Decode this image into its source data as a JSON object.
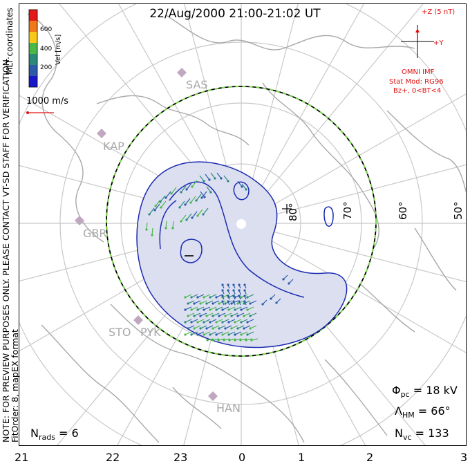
{
  "title": "22/Aug/2000 21:00-21:02 UT",
  "side_note": {
    "line1": "NOTE: FOR PREVIEW PURPOSES ONLY. PLEASE CONTACT VT-SD STAFF FOR VERIFICATION.",
    "line2": "FitOrder: 8, mapEX format"
  },
  "mlt_coordinates_label": "MLT coordinates",
  "colorbar": {
    "title": "Vel [m/s]",
    "ticks": [
      "600",
      "400",
      "200"
    ],
    "colors": [
      "#e21a1a",
      "#f07818",
      "#f8c818",
      "#4ab848",
      "#2a8a7a",
      "#2a5aa8",
      "#1818c8"
    ]
  },
  "vector_scale_label": "1000 m/s",
  "imf": {
    "bz_label": "+Z (5 nT)",
    "by_label": "+Y",
    "caption": "OMNI IMF",
    "model_line1": "Stat Mod: RG96",
    "model_line2": "Bz+, 0<BT<4"
  },
  "latitude_labels": [
    "80°",
    "70°",
    "60°",
    "50°"
  ],
  "stations": [
    "SAS",
    "KAP",
    "GBR",
    "STO",
    "PYK",
    "HAN"
  ],
  "mlt_labels": [
    "21",
    "22",
    "23",
    "0",
    "1",
    "2",
    "3"
  ],
  "stats": {
    "phi_pc": "18 kV",
    "lambda_hm": "66°",
    "n_vc": "133",
    "n_rads": "6"
  },
  "colors": {
    "contour": "#1a2ab0",
    "convection_fill": "#dcdff0",
    "grid": "#c8c8c8",
    "coastline": "#a8a8a8",
    "boundary_dash": "#7ad84a",
    "text_red": "#e01010"
  }
}
